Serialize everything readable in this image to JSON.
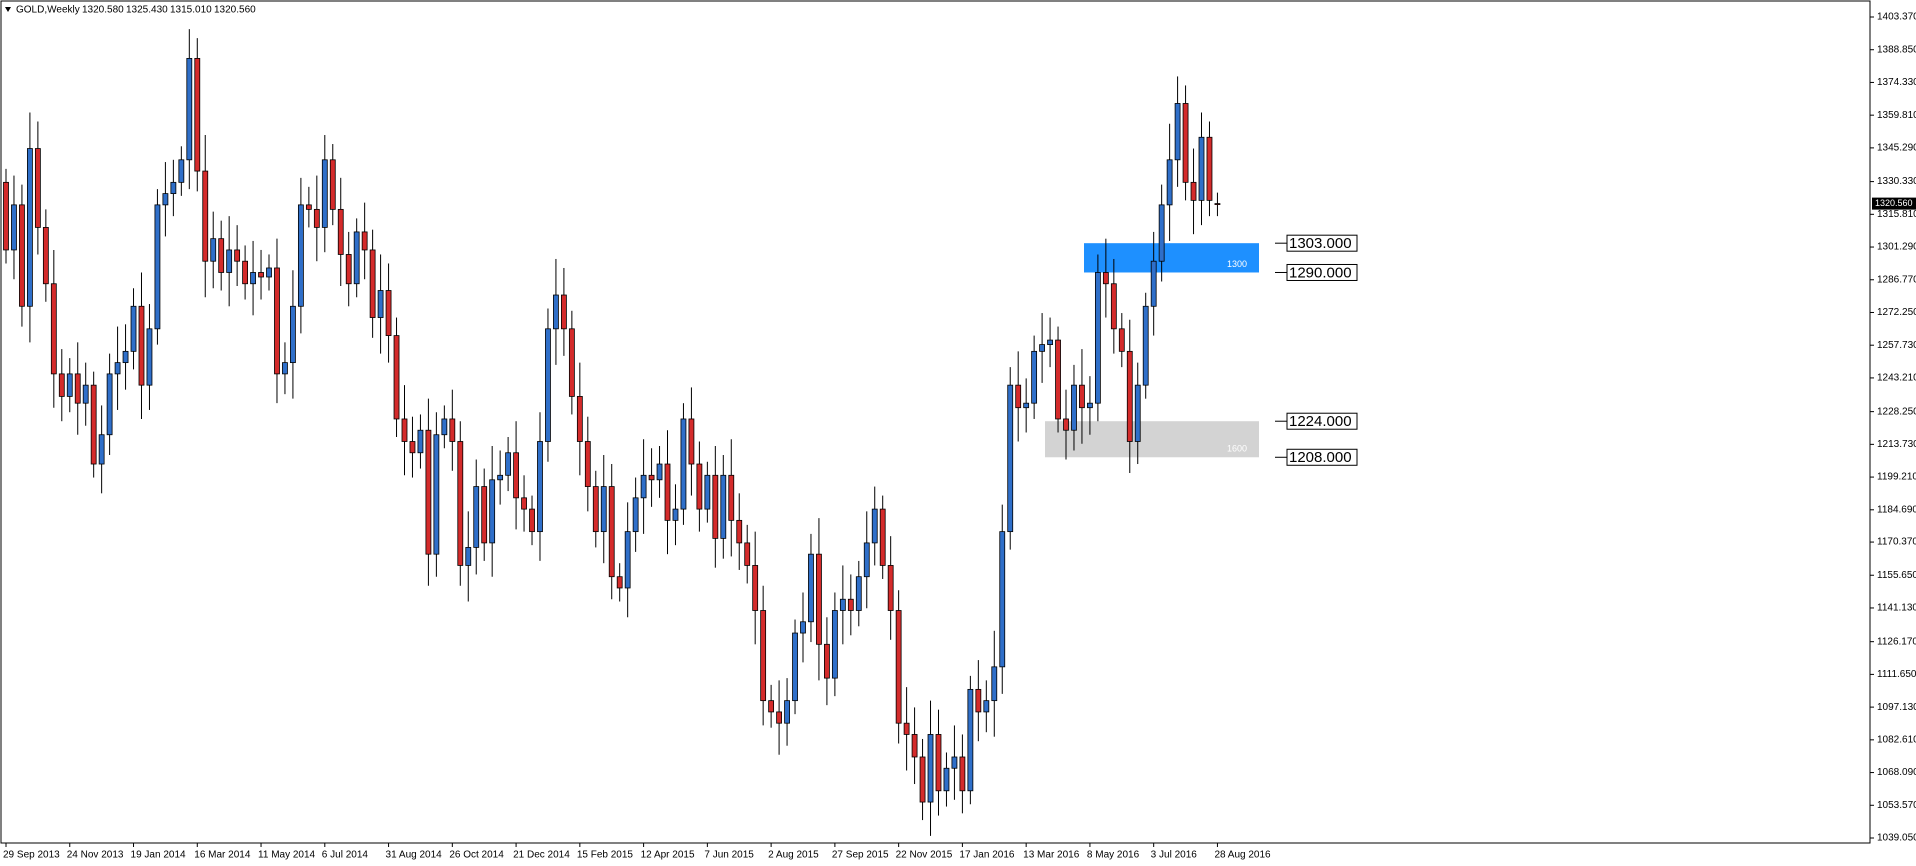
{
  "chart_data": {
    "type": "candlestick",
    "title": "GOLD,Weekly",
    "header_values": [
      "1320.580",
      "1325.430",
      "1315.010",
      "1320.560"
    ],
    "categories": [
      "29 Sep 2013",
      null,
      null,
      null,
      null,
      null,
      null,
      null,
      "24 Nov 2013",
      null,
      null,
      null,
      null,
      null,
      null,
      null,
      "19 Jan 2014",
      null,
      null,
      null,
      null,
      null,
      null,
      null,
      "16 Mar 2014",
      null,
      null,
      null,
      null,
      null,
      null,
      null,
      "11 May 2014",
      null,
      null,
      null,
      null,
      null,
      null,
      null,
      "6 Jul 2014",
      null,
      null,
      null,
      null,
      null,
      null,
      null,
      "31 Aug 2014",
      null,
      null,
      null,
      null,
      null,
      null,
      null,
      "26 Oct 2014",
      null,
      null,
      null,
      null,
      null,
      null,
      null,
      "21 Dec 2014",
      null,
      null,
      null,
      null,
      null,
      null,
      null,
      "15 Feb 2015",
      null,
      null,
      null,
      null,
      null,
      null,
      null,
      "12 Apr 2015",
      null,
      null,
      null,
      null,
      null,
      null,
      null,
      "7 Jun 2015",
      null,
      null,
      null,
      null,
      null,
      null,
      null,
      "2 Aug 2015",
      null,
      null,
      null,
      null,
      null,
      null,
      null,
      "27 Sep 2015",
      null,
      null,
      null,
      null,
      null,
      null,
      null,
      "22 Nov 2015",
      null,
      null,
      null,
      null,
      null,
      null,
      null,
      "17 Jan 2016",
      null,
      null,
      null,
      null,
      null,
      null,
      null,
      "13 Mar 2016",
      null,
      null,
      null,
      null,
      null,
      null,
      null,
      "8 May 2016",
      null,
      null,
      null,
      null,
      null,
      null,
      null,
      "3 Jul 2016",
      null,
      null,
      null,
      null,
      null,
      null,
      null,
      "28 Aug 2016"
    ],
    "open": [
      1330,
      1300,
      1320,
      1275,
      1345,
      1310,
      1285,
      1245,
      1235,
      1245,
      1232,
      1240,
      1205,
      1218,
      1245,
      1250,
      1255,
      1275,
      1240,
      1265,
      1320,
      1325,
      1330,
      1340,
      1385,
      1335,
      1295,
      1305,
      1290,
      1300,
      1295,
      1285,
      1290,
      1288,
      1292,
      1245,
      1250,
      1275,
      1320,
      1318,
      1310,
      1340,
      1318,
      1298,
      1285,
      1308,
      1300,
      1270,
      1282,
      1262,
      1225,
      1215,
      1210,
      1220,
      1165,
      1218,
      1225,
      1215,
      1160,
      1168,
      1195,
      1170,
      1198,
      1200,
      1210,
      1190,
      1185,
      1175,
      1215,
      1265,
      1280,
      1265,
      1235,
      1215,
      1195,
      1175,
      1195,
      1155,
      1150,
      1175,
      1190,
      1200,
      1198,
      1205,
      1180,
      1185,
      1225,
      1205,
      1185,
      1200,
      1172,
      1200,
      1180,
      1170,
      1160,
      1140,
      1100,
      1095,
      1090,
      1100,
      1130,
      1135,
      1165,
      1125,
      1110,
      1140,
      1145,
      1140,
      1155,
      1170,
      1185,
      1160,
      1140,
      1090,
      1085,
      1075,
      1055,
      1085,
      1060,
      1070,
      1075,
      1060,
      1105,
      1095,
      1100,
      1115,
      1175,
      1240,
      1230,
      1232,
      1255,
      1258,
      1260,
      1225,
      1220,
      1240,
      1230,
      1232,
      1290,
      1285,
      1265,
      1255,
      1215,
      1240,
      1275,
      1295,
      1320,
      1340,
      1365,
      1330,
      1322,
      1350,
      1320.58
    ],
    "high": [
      1336,
      1333,
      1329,
      1361,
      1357,
      1318,
      1300,
      1256,
      1252,
      1259,
      1250,
      1246,
      1231,
      1254,
      1266,
      1267,
      1283,
      1290,
      1276,
      1327,
      1339,
      1340,
      1346,
      1398,
      1394,
      1351,
      1317,
      1313,
      1315,
      1311,
      1302,
      1304,
      1300,
      1298,
      1305,
      1259,
      1291,
      1332,
      1328,
      1333,
      1351,
      1347,
      1332,
      1308,
      1314,
      1321,
      1309,
      1298,
      1294,
      1270,
      1240,
      1226,
      1227,
      1234,
      1228,
      1231,
      1238,
      1224,
      1184,
      1207,
      1203,
      1213,
      1211,
      1217,
      1224,
      1200,
      1191,
      1228,
      1274,
      1296,
      1292,
      1273,
      1250,
      1226,
      1202,
      1209,
      1205,
      1161,
      1188,
      1199,
      1216,
      1212,
      1213,
      1220,
      1196,
      1232,
      1239,
      1215,
      1206,
      1213,
      1209,
      1216,
      1192,
      1178,
      1175,
      1151,
      1107,
      1109,
      1110,
      1136,
      1148,
      1174,
      1181,
      1137,
      1148,
      1160,
      1156,
      1162,
      1184,
      1195,
      1191,
      1173,
      1149,
      1106,
      1097,
      1083,
      1100,
      1096,
      1077,
      1089,
      1085,
      1111,
      1118,
      1109,
      1131,
      1187,
      1248,
      1255,
      1243,
      1262,
      1272,
      1270,
      1266,
      1238,
      1249,
      1256,
      1244,
      1298,
      1305,
      1296,
      1272,
      1269,
      1250,
      1281,
      1308,
      1329,
      1356,
      1377,
      1373,
      1345,
      1361,
      1357,
      1325.43
    ],
    "low": [
      1294,
      1287,
      1266,
      1259,
      1298,
      1277,
      1230,
      1224,
      1228,
      1218,
      1222,
      1199,
      1192,
      1209,
      1229,
      1238,
      1247,
      1225,
      1229,
      1258,
      1306,
      1315,
      1324,
      1327,
      1326,
      1279,
      1283,
      1282,
      1275,
      1284,
      1278,
      1271,
      1278,
      1282,
      1232,
      1236,
      1234,
      1263,
      1310,
      1295,
      1299,
      1311,
      1284,
      1275,
      1279,
      1287,
      1261,
      1254,
      1250,
      1217,
      1200,
      1199,
      1203,
      1151,
      1155,
      1212,
      1202,
      1151,
      1144,
      1156,
      1162,
      1155,
      1187,
      1193,
      1176,
      1175,
      1169,
      1162,
      1206,
      1249,
      1253,
      1227,
      1200,
      1184,
      1168,
      1161,
      1145,
      1144,
      1137,
      1166,
      1174,
      1186,
      1190,
      1165,
      1169,
      1178,
      1191,
      1175,
      1179,
      1159,
      1163,
      1164,
      1158,
      1152,
      1125,
      1089,
      1088,
      1076,
      1080,
      1094,
      1117,
      1126,
      1109,
      1098,
      1102,
      1125,
      1129,
      1133,
      1141,
      1160,
      1154,
      1127,
      1081,
      1069,
      1063,
      1047,
      1040,
      1049,
      1053,
      1056,
      1050,
      1054,
      1082,
      1086,
      1084,
      1103,
      1167,
      1215,
      1219,
      1225,
      1241,
      1248,
      1219,
      1207,
      1211,
      1214,
      1218,
      1224,
      1270,
      1254,
      1248,
      1201,
      1205,
      1234,
      1262,
      1286,
      1304,
      1328,
      1322,
      1307,
      1311,
      1315,
      1315.01
    ],
    "close": [
      1300,
      1320,
      1275,
      1345,
      1310,
      1285,
      1245,
      1235,
      1245,
      1232,
      1240,
      1205,
      1218,
      1245,
      1250,
      1255,
      1275,
      1240,
      1265,
      1320,
      1325,
      1330,
      1340,
      1385,
      1335,
      1295,
      1305,
      1290,
      1300,
      1295,
      1285,
      1290,
      1288,
      1292,
      1245,
      1250,
      1275,
      1320,
      1318,
      1310,
      1340,
      1318,
      1298,
      1285,
      1308,
      1300,
      1270,
      1282,
      1262,
      1225,
      1215,
      1210,
      1220,
      1165,
      1218,
      1225,
      1215,
      1160,
      1168,
      1195,
      1170,
      1198,
      1200,
      1210,
      1190,
      1185,
      1175,
      1215,
      1265,
      1280,
      1265,
      1235,
      1215,
      1195,
      1175,
      1195,
      1155,
      1150,
      1175,
      1190,
      1200,
      1198,
      1205,
      1180,
      1185,
      1225,
      1205,
      1185,
      1200,
      1172,
      1200,
      1180,
      1170,
      1160,
      1140,
      1100,
      1095,
      1090,
      1100,
      1130,
      1135,
      1165,
      1125,
      1110,
      1140,
      1145,
      1140,
      1155,
      1170,
      1185,
      1160,
      1140,
      1090,
      1085,
      1075,
      1055,
      1085,
      1060,
      1070,
      1075,
      1060,
      1105,
      1095,
      1100,
      1115,
      1175,
      1240,
      1230,
      1232,
      1255,
      1258,
      1260,
      1225,
      1220,
      1240,
      1230,
      1232,
      1290,
      1285,
      1265,
      1255,
      1215,
      1240,
      1275,
      1295,
      1320,
      1340,
      1365,
      1330,
      1322,
      1350,
      1322,
      1320.56
    ],
    "up_color": "#2f6fc9",
    "down_color": "#d42b2b",
    "last_price_label": "1320.560",
    "ylim": [
      1039.05,
      1403.37
    ],
    "yticks": [
      {
        "value": 1403.37,
        "label": "1403.370"
      },
      {
        "value": 1388.85,
        "label": "1388.850"
      },
      {
        "value": 1374.33,
        "label": "1374.330"
      },
      {
        "value": 1359.81,
        "label": "1359.810"
      },
      {
        "value": 1345.29,
        "label": "1345.290"
      },
      {
        "value": 1330.33,
        "label": "1330.330"
      },
      {
        "value": 1315.81,
        "label": "1315.810"
      },
      {
        "value": 1301.29,
        "label": "1301.290"
      },
      {
        "value": 1286.77,
        "label": "1286.770"
      },
      {
        "value": 1272.25,
        "label": "1272.250"
      },
      {
        "value": 1257.73,
        "label": "1257.730"
      },
      {
        "value": 1243.21,
        "label": "1243.210"
      },
      {
        "value": 1228.25,
        "label": "1228.250"
      },
      {
        "value": 1213.73,
        "label": "1213.730"
      },
      {
        "value": 1199.21,
        "label": "1199.210"
      },
      {
        "value": 1184.69,
        "label": "1184.690"
      },
      {
        "value": 1170.37,
        "label": "1170.370"
      },
      {
        "value": 1155.65,
        "label": "1155.650"
      },
      {
        "value": 1141.13,
        "label": "1141.130"
      },
      {
        "value": 1126.17,
        "label": "1126.170"
      },
      {
        "value": 1111.65,
        "label": "1111.650"
      },
      {
        "value": 1097.13,
        "label": "1097.130"
      },
      {
        "value": 1082.61,
        "label": "1082.610"
      },
      {
        "value": 1068.09,
        "label": "1068.090"
      },
      {
        "value": 1053.57,
        "label": "1053.570"
      },
      {
        "value": 1039.05,
        "label": "1039.050"
      }
    ],
    "zones": [
      {
        "top": 1303,
        "bottom": 1290,
        "color": "#1e90ff",
        "label": "1300"
      },
      {
        "top": 1224,
        "bottom": 1208,
        "color": "#d3d3d3",
        "label": "1600"
      }
    ],
    "levels": [
      {
        "value": 1303,
        "label": "1303.000"
      },
      {
        "value": 1290,
        "label": "1290.000"
      },
      {
        "value": 1224,
        "label": "1224.000"
      },
      {
        "value": 1208,
        "label": "1208.000"
      }
    ]
  }
}
